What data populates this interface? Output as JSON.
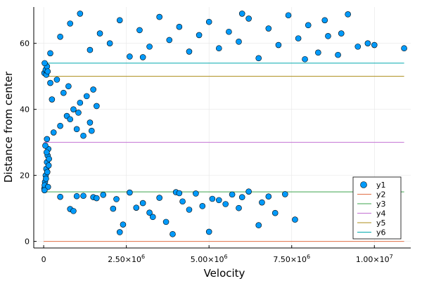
{
  "chart_data": {
    "type": "scatter",
    "title": "",
    "xlabel": "Velocity",
    "ylabel": "Distance from center",
    "xlim": [
      -300000,
      11100000
    ],
    "ylim": [
      -2,
      71
    ],
    "grid": true,
    "legend_position": "bottom-right",
    "x_ticks": [
      {
        "value": 0,
        "label": "0"
      },
      {
        "value": 2500000,
        "label": "2.50×10",
        "exp": "6"
      },
      {
        "value": 5000000,
        "label": "5.00×10",
        "exp": "6"
      },
      {
        "value": 7500000,
        "label": "7.50×10",
        "exp": "6"
      },
      {
        "value": 10000000,
        "label": "1.00×10",
        "exp": "7"
      }
    ],
    "y_ticks": [
      {
        "value": 0,
        "label": "0"
      },
      {
        "value": 20,
        "label": "20"
      },
      {
        "value": 40,
        "label": "40"
      },
      {
        "value": 60,
        "label": "60"
      }
    ],
    "series": [
      {
        "name": "y1",
        "kind": "scatter",
        "color": "#009AFA",
        "points": [
          [
            20000,
            16
          ],
          [
            40000,
            18
          ],
          [
            60000,
            20
          ],
          [
            80000,
            22
          ],
          [
            100000,
            24
          ],
          [
            120000,
            26
          ],
          [
            140000,
            28
          ],
          [
            30000,
            17
          ],
          [
            70000,
            19
          ],
          [
            110000,
            21
          ],
          [
            150000,
            23
          ],
          [
            160000,
            25
          ],
          [
            90000,
            27
          ],
          [
            50000,
            29
          ],
          [
            130000,
            16.5
          ],
          [
            25000,
            15.5
          ],
          [
            20000,
            51
          ],
          [
            60000,
            52
          ],
          [
            100000,
            53
          ],
          [
            30000,
            54
          ],
          [
            80000,
            50.5
          ],
          [
            120000,
            51.5
          ],
          [
            100000,
            31
          ],
          [
            300000,
            33
          ],
          [
            500000,
            35
          ],
          [
            700000,
            38
          ],
          [
            900000,
            40
          ],
          [
            1100000,
            42
          ],
          [
            1300000,
            44
          ],
          [
            1500000,
            46
          ],
          [
            200000,
            48
          ],
          [
            400000,
            49
          ],
          [
            600000,
            45
          ],
          [
            800000,
            37
          ],
          [
            1000000,
            34
          ],
          [
            1200000,
            32
          ],
          [
            1400000,
            36
          ],
          [
            1600000,
            41
          ],
          [
            250000,
            43
          ],
          [
            750000,
            47
          ],
          [
            1050000,
            39
          ],
          [
            1450000,
            33.5
          ],
          [
            500000,
            13.5
          ],
          [
            800000,
            9.8
          ],
          [
            900000,
            9.2
          ],
          [
            1000000,
            13.7
          ],
          [
            1200000,
            13.8
          ],
          [
            1500000,
            13.4
          ],
          [
            1800000,
            14.1
          ],
          [
            2100000,
            9.9
          ],
          [
            2300000,
            2.8
          ],
          [
            2400000,
            5.1
          ],
          [
            2600000,
            14.8
          ],
          [
            2800000,
            10.2
          ],
          [
            3000000,
            11.6
          ],
          [
            3200000,
            8.7
          ],
          [
            3500000,
            13.2
          ],
          [
            3700000,
            5.9
          ],
          [
            3900000,
            2.2
          ],
          [
            4000000,
            14.9
          ],
          [
            4200000,
            12.1
          ],
          [
            4400000,
            9.6
          ],
          [
            4600000,
            14.5
          ],
          [
            4800000,
            10.7
          ],
          [
            5000000,
            2.9
          ],
          [
            5300000,
            12.5
          ],
          [
            5500000,
            11.3
          ],
          [
            5700000,
            14.2
          ],
          [
            6000000,
            13.4
          ],
          [
            6200000,
            15.1
          ],
          [
            6500000,
            4.9
          ],
          [
            6800000,
            13.6
          ],
          [
            7000000,
            8.6
          ],
          [
            7300000,
            14.3
          ],
          [
            7600000,
            6.6
          ],
          [
            2200000,
            12.8
          ],
          [
            3300000,
            7.4
          ],
          [
            4100000,
            14.6
          ],
          [
            5100000,
            12.9
          ],
          [
            5900000,
            10.1
          ],
          [
            6600000,
            11.8
          ],
          [
            1600000,
            13.1
          ],
          [
            200000,
            57
          ],
          [
            500000,
            62
          ],
          [
            800000,
            66
          ],
          [
            1100000,
            69
          ],
          [
            1400000,
            58
          ],
          [
            1700000,
            63
          ],
          [
            2000000,
            60
          ],
          [
            2300000,
            67
          ],
          [
            2600000,
            56
          ],
          [
            2900000,
            64
          ],
          [
            3200000,
            59
          ],
          [
            3500000,
            68
          ],
          [
            3800000,
            61
          ],
          [
            4100000,
            65
          ],
          [
            4400000,
            57.5
          ],
          [
            4700000,
            62.5
          ],
          [
            5000000,
            66.5
          ],
          [
            5300000,
            58.5
          ],
          [
            5600000,
            63.5
          ],
          [
            5900000,
            60.5
          ],
          [
            6200000,
            67.5
          ],
          [
            6500000,
            55.5
          ],
          [
            6800000,
            64.5
          ],
          [
            7100000,
            59.5
          ],
          [
            7400000,
            68.5
          ],
          [
            7700000,
            61.5
          ],
          [
            8000000,
            65.5
          ],
          [
            8300000,
            57.2
          ],
          [
            8600000,
            62.2
          ],
          [
            8900000,
            56.5
          ],
          [
            9200000,
            68.8
          ],
          [
            9500000,
            59.0
          ],
          [
            9800000,
            60.0
          ],
          [
            10000000,
            59.5
          ],
          [
            10900000,
            58.5
          ],
          [
            9000000,
            63.0
          ],
          [
            8500000,
            67.0
          ],
          [
            7900000,
            55.2
          ],
          [
            6000000,
            69.0
          ],
          [
            3000000,
            55.8
          ]
        ]
      },
      {
        "name": "y2",
        "kind": "line",
        "color": "#E26F46",
        "x": [
          0,
          10900000
        ],
        "y": [
          0,
          0
        ]
      },
      {
        "name": "y3",
        "kind": "line",
        "color": "#3DA44D",
        "x": [
          0,
          10900000
        ],
        "y": [
          15,
          15
        ]
      },
      {
        "name": "y4",
        "kind": "line",
        "color": "#C271D2",
        "x": [
          0,
          10900000
        ],
        "y": [
          30,
          30
        ]
      },
      {
        "name": "y5",
        "kind": "line",
        "color": "#AC8D18",
        "x": [
          0,
          10900000
        ],
        "y": [
          50,
          50
        ]
      },
      {
        "name": "y6",
        "kind": "line",
        "color": "#00A9AD",
        "x": [
          0,
          10900000
        ],
        "y": [
          54,
          54
        ]
      }
    ]
  }
}
